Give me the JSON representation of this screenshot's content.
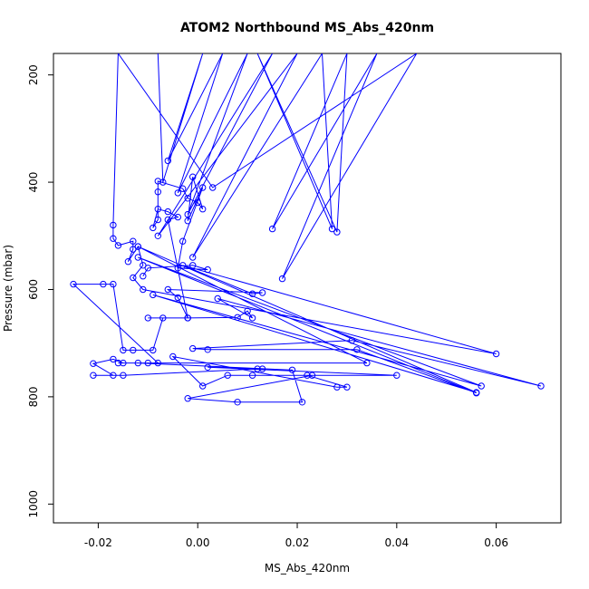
{
  "chart_data": {
    "type": "scatter",
    "title": "ATOM2 Northbound MS_Abs_420nm",
    "xlabel": "MS_Abs_420nm",
    "ylabel": "Pressure (mbar)",
    "xlim": [
      -0.029,
      0.073
    ],
    "ylim": [
      1035,
      160
    ],
    "y_reversed": true,
    "x_ticks": [
      -0.02,
      0.0,
      0.02,
      0.04,
      0.06
    ],
    "x_tick_labels": [
      "-0.02",
      "0.00",
      "0.02",
      "0.04",
      "0.06"
    ],
    "y_ticks": [
      200,
      400,
      600,
      800,
      1000
    ],
    "y_tick_labels": [
      "200",
      "400",
      "600",
      "800",
      "1000"
    ],
    "grid": false,
    "series": [
      {
        "color": "#0000ff",
        "marker": "open-circle",
        "connected": true,
        "points": [
          [
            -0.008,
            160
          ],
          [
            -0.007,
            400
          ],
          [
            0.001,
            160
          ],
          [
            -0.006,
            360
          ],
          [
            0.005,
            160
          ],
          [
            -0.004,
            420
          ],
          [
            0.01,
            160
          ],
          [
            -0.002,
            460
          ],
          [
            0.015,
            160
          ],
          [
            -0.008,
            500
          ],
          [
            0.02,
            160
          ],
          [
            -0.001,
            540
          ],
          [
            0.025,
            160
          ],
          [
            0.027,
            487
          ],
          [
            0.012,
            160
          ],
          [
            0.028,
            493
          ],
          [
            0.03,
            160
          ],
          [
            0.015,
            487
          ],
          [
            0.036,
            160
          ],
          [
            0.017,
            580
          ],
          [
            0.044,
            160
          ],
          [
            0.003,
            410
          ],
          [
            -0.016,
            160
          ],
          [
            -0.017,
            480
          ],
          [
            -0.017,
            505
          ],
          [
            -0.016,
            518
          ],
          [
            -0.013,
            510
          ],
          [
            -0.013,
            525
          ],
          [
            -0.014,
            548
          ],
          [
            -0.012,
            520
          ],
          [
            -0.011,
            555
          ],
          [
            -0.013,
            578
          ],
          [
            -0.011,
            600
          ],
          [
            0.06,
            720
          ],
          [
            -0.003,
            555
          ],
          [
            0.011,
            608
          ],
          [
            0.013,
            606
          ],
          [
            -0.006,
            600
          ],
          [
            -0.004,
            615
          ],
          [
            -0.002,
            653
          ],
          [
            0.008,
            652
          ],
          [
            0.01,
            640
          ],
          [
            0.011,
            653
          ],
          [
            0.004,
            617
          ],
          [
            0.069,
            780
          ],
          [
            0.031,
            695
          ],
          [
            -0.001,
            710
          ],
          [
            0.002,
            712
          ],
          [
            0.032,
            712
          ],
          [
            0.056,
            793
          ],
          [
            -0.012,
            540
          ],
          [
            0.057,
            780
          ],
          [
            -0.009,
            610
          ],
          [
            0.056,
            792
          ],
          [
            -0.012,
            520
          ],
          [
            0.034,
            737
          ],
          [
            -0.016,
            737
          ],
          [
            -0.015,
            737
          ],
          [
            -0.017,
            730
          ],
          [
            -0.021,
            738
          ],
          [
            -0.017,
            760
          ],
          [
            -0.021,
            760
          ],
          [
            -0.015,
            760
          ],
          [
            0.012,
            748
          ],
          [
            0.013,
            748
          ],
          [
            0.002,
            745
          ],
          [
            0.04,
            760
          ],
          [
            0.011,
            760
          ],
          [
            0.006,
            760
          ],
          [
            0.001,
            780
          ],
          [
            -0.005,
            725
          ],
          [
            0.028,
            782
          ],
          [
            0.03,
            782
          ],
          [
            0.022,
            760
          ],
          [
            0.023,
            760
          ],
          [
            -0.002,
            803
          ],
          [
            0.008,
            810
          ],
          [
            0.021,
            810
          ],
          [
            0.019,
            750
          ],
          [
            -0.012,
            737
          ],
          [
            -0.01,
            737
          ],
          [
            -0.008,
            737
          ],
          [
            -0.025,
            590
          ],
          [
            -0.019,
            590
          ],
          [
            -0.017,
            590
          ],
          [
            -0.015,
            713
          ],
          [
            -0.013,
            713
          ],
          [
            -0.009,
            713
          ],
          [
            -0.007,
            653
          ],
          [
            -0.01,
            653
          ],
          [
            -0.002,
            653
          ],
          [
            -0.006,
            470
          ],
          [
            -0.004,
            465
          ],
          [
            -0.006,
            455
          ],
          [
            -0.008,
            450
          ],
          [
            -0.009,
            485
          ],
          [
            -0.008,
            470
          ],
          [
            -0.008,
            418
          ],
          [
            -0.008,
            398
          ],
          [
            -0.003,
            412
          ],
          [
            -0.002,
            430
          ],
          [
            0.0,
            438
          ],
          [
            0.001,
            450
          ],
          [
            -0.001,
            390
          ],
          [
            -0.002,
            472
          ],
          [
            0.001,
            410
          ],
          [
            -0.003,
            510
          ],
          [
            -0.004,
            560
          ],
          [
            0.002,
            563
          ],
          [
            -0.001,
            555
          ],
          [
            -0.01,
            560
          ],
          [
            -0.011,
            575
          ]
        ]
      }
    ]
  }
}
